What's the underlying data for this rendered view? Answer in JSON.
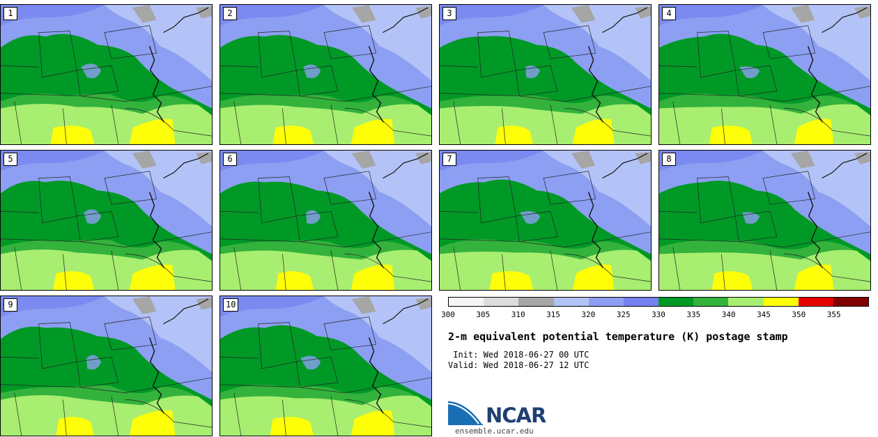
{
  "members": [
    {
      "label": "1",
      "variant": 0
    },
    {
      "label": "2",
      "variant": 1
    },
    {
      "label": "3",
      "variant": 2
    },
    {
      "label": "4",
      "variant": 3
    },
    {
      "label": "5",
      "variant": 4
    },
    {
      "label": "6",
      "variant": 5
    },
    {
      "label": "7",
      "variant": 6
    },
    {
      "label": "8",
      "variant": 7
    },
    {
      "label": "9",
      "variant": 8
    },
    {
      "label": "10",
      "variant": 9
    }
  ],
  "colorbar": {
    "colors": [
      "#f5f5f5",
      "#dcdcdc",
      "#a6a6a6",
      "#b4c3f7",
      "#8c9ff2",
      "#7382ef",
      "#009926",
      "#33b23c",
      "#a8ee70",
      "#fefe08",
      "#e70000",
      "#820000"
    ],
    "tick_labels": [
      "300",
      "305",
      "310",
      "315",
      "320",
      "325",
      "330",
      "335",
      "340",
      "345",
      "350",
      "355"
    ]
  },
  "title": "2-m equivalent potential temperature (K) postage stamp",
  "init": " Init: Wed 2018-06-27 00 UTC",
  "valid": "Valid: Wed 2018-06-27 12 UTC",
  "logo": {
    "text": "NCAR",
    "colors": [
      "#1a6fb4",
      "#1f3f73"
    ]
  },
  "website": "ensemble.ucar.edu"
}
